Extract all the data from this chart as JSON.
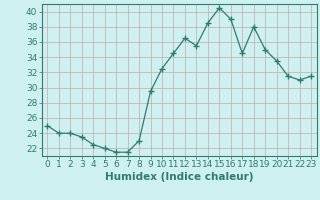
{
  "x": [
    0,
    1,
    2,
    3,
    4,
    5,
    6,
    7,
    8,
    9,
    10,
    11,
    12,
    13,
    14,
    15,
    16,
    17,
    18,
    19,
    20,
    21,
    22,
    23
  ],
  "y": [
    25,
    24,
    24,
    23.5,
    22.5,
    22,
    21.5,
    21.5,
    23,
    29.5,
    32.5,
    34.5,
    36.5,
    35.5,
    38.5,
    40.5,
    39,
    34.5,
    38,
    35,
    33.5,
    31.5,
    31,
    31.5
  ],
  "line_color": "#2e7d6e",
  "marker_color": "#2e7d6e",
  "bg_color": "#cff0f0",
  "grid_color": "#c4aaaa",
  "xlabel": "Humidex (Indice chaleur)",
  "ylim": [
    21,
    41
  ],
  "xlim": [
    -0.5,
    23.5
  ],
  "yticks": [
    22,
    24,
    26,
    28,
    30,
    32,
    34,
    36,
    38,
    40
  ],
  "xticks": [
    0,
    1,
    2,
    3,
    4,
    5,
    6,
    7,
    8,
    9,
    10,
    11,
    12,
    13,
    14,
    15,
    16,
    17,
    18,
    19,
    20,
    21,
    22,
    23
  ],
  "tick_fontsize": 6.5,
  "xlabel_fontsize": 7.5
}
